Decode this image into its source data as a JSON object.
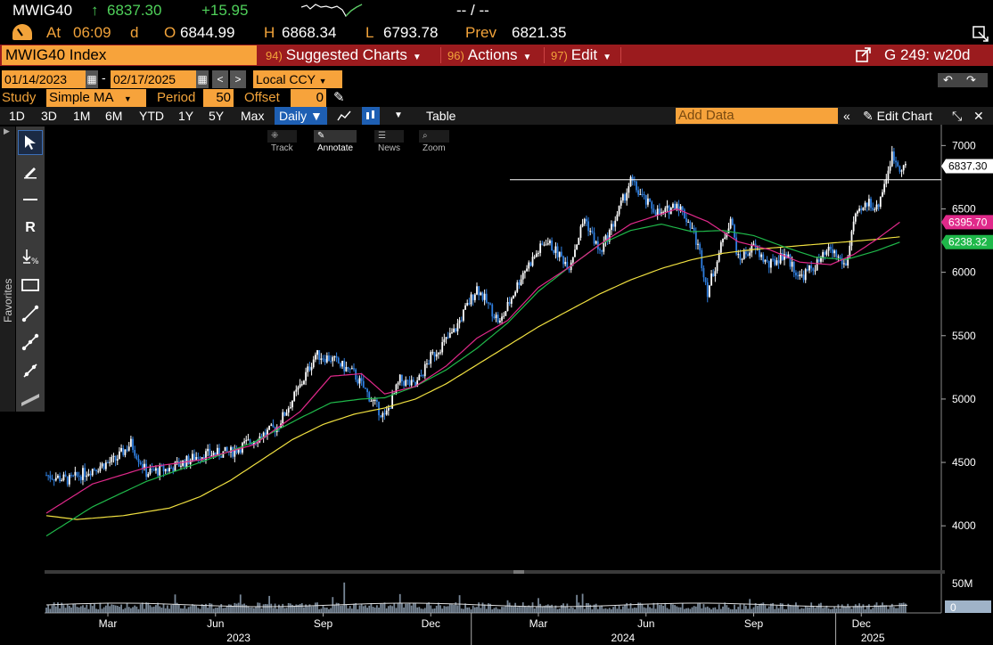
{
  "quote": {
    "ticker": "MWIG40",
    "arrow": "↑",
    "last": "6837.30",
    "change": "+15.95",
    "bid_ask": "-- / --"
  },
  "status": {
    "at_label": "At",
    "time": "06:09",
    "time_suffix": "d",
    "open_label": "O",
    "open": "6844.99",
    "high_label": "H",
    "high": "6868.34",
    "low_label": "L",
    "low": "6793.78",
    "prev_label": "Prev",
    "prev": "6821.35"
  },
  "menubar": {
    "security": "MWIG40 Index",
    "suggested_num": "94)",
    "suggested": "Suggested Charts",
    "actions_num": "96)",
    "actions": "Actions",
    "edit_num": "97)",
    "edit": "Edit",
    "page_code": "G 249: w20d"
  },
  "range": {
    "start": "01/14/2023",
    "dash": "-",
    "end": "02/17/2025",
    "currency": "Local CCY"
  },
  "study": {
    "label": "Study",
    "type": "Simple MA",
    "period_label": "Period",
    "period": "50",
    "offset_label": "Offset",
    "offset": "0"
  },
  "toolbar": {
    "periods": [
      "1D",
      "3D",
      "1M",
      "6M",
      "YTD",
      "1Y",
      "5Y",
      "Max"
    ],
    "frequency": "Daily",
    "table": "Table",
    "add_data_placeholder": "Add Data",
    "edit_chart": "Edit Chart"
  },
  "modes": {
    "track": "Track",
    "annotate": "Annotate",
    "news": "News",
    "zoom": "Zoom"
  },
  "palette": {
    "favorites": "Favorites"
  },
  "chart_data": {
    "type": "candlestick",
    "y_ticks": [
      4000,
      4500,
      5000,
      5500,
      6000,
      6500,
      7000
    ],
    "ylim": [
      3650,
      7150
    ],
    "x_labels": [
      "Mar",
      "Jun",
      "Sep",
      "Dec",
      "Mar",
      "Jun",
      "Sep",
      "Dec"
    ],
    "year_labels": [
      "2023",
      "2024",
      "2025"
    ],
    "price_labels": [
      {
        "value": 6837.3,
        "text": "6837.30",
        "color": "#ffffff"
      },
      {
        "value": 6395.7,
        "text": "6395.70",
        "color": "#e0298a"
      },
      {
        "value": 6238.32,
        "text": "6238.32",
        "color": "#1fb84a"
      }
    ],
    "horizontal_line": 6730,
    "price_path": [
      [
        0,
        4400
      ],
      [
        3,
        4360
      ],
      [
        6,
        4450
      ],
      [
        9,
        4520
      ],
      [
        11,
        4650
      ],
      [
        13,
        4420
      ],
      [
        16,
        4450
      ],
      [
        20,
        4560
      ],
      [
        24,
        4580
      ],
      [
        27,
        4680
      ],
      [
        30,
        4780
      ],
      [
        33,
        5100
      ],
      [
        35,
        5350
      ],
      [
        37,
        5320
      ],
      [
        40,
        5200
      ],
      [
        42,
        5020
      ],
      [
        44,
        4850
      ],
      [
        46,
        5150
      ],
      [
        48,
        5100
      ],
      [
        50,
        5330
      ],
      [
        53,
        5530
      ],
      [
        56,
        5880
      ],
      [
        59,
        5600
      ],
      [
        62,
        6000
      ],
      [
        65,
        6250
      ],
      [
        68,
        6050
      ],
      [
        70,
        6430
      ],
      [
        72,
        6150
      ],
      [
        74,
        6420
      ],
      [
        76,
        6720
      ],
      [
        78,
        6550
      ],
      [
        80,
        6450
      ],
      [
        82,
        6550
      ],
      [
        84,
        6350
      ],
      [
        85,
        6150
      ],
      [
        86,
        5850
      ],
      [
        88,
        6250
      ],
      [
        89,
        6430
      ],
      [
        90,
        6100
      ],
      [
        92,
        6200
      ],
      [
        94,
        6050
      ],
      [
        96,
        6150
      ],
      [
        98,
        5960
      ],
      [
        100,
        6050
      ],
      [
        102,
        6180
      ],
      [
        104,
        6050
      ],
      [
        105,
        6400
      ],
      [
        107,
        6560
      ],
      [
        108,
        6500
      ],
      [
        109,
        6700
      ],
      [
        110,
        6920
      ],
      [
        111,
        6837
      ]
    ],
    "ma_short": [
      [
        0,
        4100
      ],
      [
        6,
        4330
      ],
      [
        13,
        4460
      ],
      [
        20,
        4520
      ],
      [
        27,
        4640
      ],
      [
        33,
        4900
      ],
      [
        37,
        5180
      ],
      [
        41,
        5200
      ],
      [
        44,
        5040
      ],
      [
        48,
        5100
      ],
      [
        52,
        5260
      ],
      [
        56,
        5480
      ],
      [
        60,
        5620
      ],
      [
        64,
        5880
      ],
      [
        68,
        6040
      ],
      [
        72,
        6220
      ],
      [
        76,
        6380
      ],
      [
        80,
        6460
      ],
      [
        82,
        6500
      ],
      [
        86,
        6400
      ],
      [
        90,
        6240
      ],
      [
        94,
        6180
      ],
      [
        98,
        6080
      ],
      [
        102,
        6060
      ],
      [
        105,
        6140
      ],
      [
        108,
        6260
      ],
      [
        111,
        6395
      ]
    ],
    "ma_mid": [
      [
        0,
        3920
      ],
      [
        6,
        4150
      ],
      [
        13,
        4350
      ],
      [
        20,
        4500
      ],
      [
        27,
        4660
      ],
      [
        33,
        4850
      ],
      [
        37,
        4970
      ],
      [
        41,
        5000
      ],
      [
        44,
        5010
      ],
      [
        48,
        5100
      ],
      [
        52,
        5230
      ],
      [
        56,
        5400
      ],
      [
        60,
        5600
      ],
      [
        64,
        5850
      ],
      [
        68,
        6040
      ],
      [
        72,
        6220
      ],
      [
        76,
        6330
      ],
      [
        80,
        6380
      ],
      [
        84,
        6320
      ],
      [
        88,
        6330
      ],
      [
        92,
        6290
      ],
      [
        96,
        6200
      ],
      [
        100,
        6120
      ],
      [
        104,
        6100
      ],
      [
        108,
        6170
      ],
      [
        111,
        6238
      ]
    ],
    "ma_long": [
      [
        0,
        4080
      ],
      [
        4,
        4050
      ],
      [
        10,
        4080
      ],
      [
        16,
        4140
      ],
      [
        20,
        4230
      ],
      [
        24,
        4360
      ],
      [
        28,
        4520
      ],
      [
        32,
        4680
      ],
      [
        36,
        4800
      ],
      [
        40,
        4880
      ],
      [
        44,
        4930
      ],
      [
        48,
        5000
      ],
      [
        52,
        5120
      ],
      [
        56,
        5270
      ],
      [
        60,
        5420
      ],
      [
        64,
        5570
      ],
      [
        68,
        5700
      ],
      [
        72,
        5830
      ],
      [
        76,
        5940
      ],
      [
        80,
        6030
      ],
      [
        84,
        6100
      ],
      [
        88,
        6150
      ],
      [
        92,
        6180
      ],
      [
        96,
        6200
      ],
      [
        100,
        6220
      ],
      [
        104,
        6240
      ],
      [
        108,
        6260
      ],
      [
        111,
        6280
      ]
    ],
    "volume_scale_label": "50M",
    "volume_zero_label": "0",
    "colors": {
      "candle": "#ffffff",
      "candle_down": "#2f7fe0",
      "ma_short": "#e0298a",
      "ma_mid": "#1fb84a",
      "ma_long": "#f0e040",
      "volume": "#9fb3c8"
    }
  }
}
